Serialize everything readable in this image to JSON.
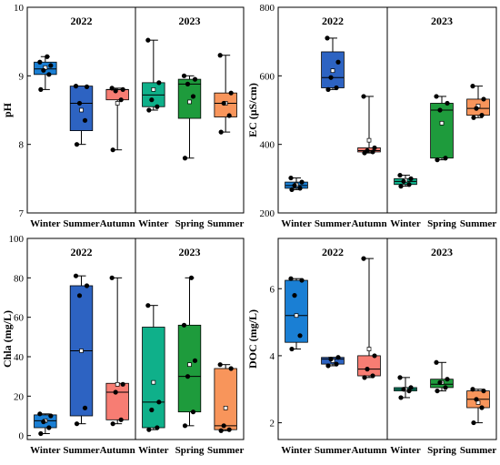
{
  "colors": {
    "Winter22": "#1a7fd4",
    "Summer22": "#2d63c2",
    "Autumn": "#f77d73",
    "Winter23": "#0fb08a",
    "Spring": "#1e9b3c",
    "Summer23": "#f8955b"
  },
  "chart_data": [
    {
      "type": "box",
      "ylabel": "pH",
      "ylim": [
        7,
        10
      ],
      "yticks": [
        "7",
        "8",
        "9",
        "10"
      ],
      "groups": [
        "2022",
        "2023"
      ],
      "categories": [
        "Winter",
        "Summer",
        "Autumn",
        "Winter",
        "Spring",
        "Summer"
      ],
      "boxes": [
        {
          "group": "2022",
          "category": "Winter",
          "color_key": "Winter22",
          "whisker_low": 8.8,
          "q1": 9.02,
          "median": 9.1,
          "q3": 9.2,
          "whisker_high": 9.28,
          "mean": 9.12,
          "points": [
            8.8,
            9.02,
            9.08,
            9.15,
            9.2,
            9.28
          ]
        },
        {
          "group": "2022",
          "category": "Summer",
          "color_key": "Summer22",
          "whisker_low": 8.0,
          "q1": 8.2,
          "median": 8.6,
          "q3": 8.85,
          "whisker_high": 8.85,
          "mean": 8.5,
          "points": [
            8.0,
            8.35,
            8.6,
            8.84,
            8.85
          ]
        },
        {
          "group": "2022",
          "category": "Autumn",
          "color_key": "Autumn",
          "whisker_low": 7.92,
          "q1": 8.65,
          "median": 8.8,
          "q3": 8.8,
          "whisker_high": 8.82,
          "mean": 8.6,
          "points": [
            7.92,
            8.65,
            8.78,
            8.8,
            8.82
          ]
        },
        {
          "group": "2023",
          "category": "Winter",
          "color_key": "Winter23",
          "whisker_low": 8.5,
          "q1": 8.55,
          "median": 8.72,
          "q3": 8.9,
          "whisker_high": 9.52,
          "mean": 8.8,
          "points": [
            8.5,
            8.55,
            8.65,
            8.9,
            9.52
          ]
        },
        {
          "group": "2023",
          "category": "Spring",
          "color_key": "Spring",
          "whisker_low": 7.8,
          "q1": 8.38,
          "median": 8.88,
          "q3": 8.95,
          "whisker_high": 9.0,
          "mean": 8.62,
          "points": [
            7.8,
            8.7,
            8.88,
            8.95,
            9.0
          ]
        },
        {
          "group": "2023",
          "category": "Summer",
          "color_key": "Summer23",
          "whisker_low": 8.18,
          "q1": 8.4,
          "median": 8.6,
          "q3": 8.75,
          "whisker_high": 9.3,
          "mean": 8.6,
          "points": [
            8.18,
            8.42,
            8.6,
            8.75,
            9.3
          ]
        }
      ]
    },
    {
      "type": "box",
      "ylabel": "EC (μS/cm)",
      "ylim": [
        200,
        800
      ],
      "yticks": [
        "200",
        "400",
        "600",
        "800"
      ],
      "groups": [
        "2022",
        "2023"
      ],
      "categories": [
        "Winter",
        "Summer",
        "Autumn",
        "Winter",
        "Spring",
        "Summer"
      ],
      "boxes": [
        {
          "group": "2022",
          "category": "Winter",
          "color_key": "Winter22",
          "whisker_low": 268,
          "q1": 272,
          "median": 280,
          "q3": 290,
          "whisker_high": 302,
          "mean": 282,
          "points": [
            268,
            272,
            280,
            290,
            302
          ]
        },
        {
          "group": "2022",
          "category": "Summer",
          "color_key": "Summer22",
          "whisker_low": 560,
          "q1": 565,
          "median": 595,
          "q3": 670,
          "whisker_high": 710,
          "mean": 615,
          "points": [
            560,
            565,
            595,
            640,
            710
          ]
        },
        {
          "group": "2022",
          "category": "Autumn",
          "color_key": "Autumn",
          "whisker_low": 375,
          "q1": 378,
          "median": 382,
          "q3": 390,
          "whisker_high": 540,
          "mean": 412,
          "points": [
            375,
            378,
            382,
            390,
            540
          ]
        },
        {
          "group": "2023",
          "category": "Winter",
          "color_key": "Winter23",
          "whisker_low": 278,
          "q1": 283,
          "median": 292,
          "q3": 300,
          "whisker_high": 310,
          "mean": 295,
          "points": [
            278,
            283,
            292,
            300,
            310
          ]
        },
        {
          "group": "2023",
          "category": "Spring",
          "color_key": "Spring",
          "whisker_low": 355,
          "q1": 360,
          "median": 500,
          "q3": 520,
          "whisker_high": 540,
          "mean": 462,
          "points": [
            355,
            360,
            500,
            520,
            540
          ]
        },
        {
          "group": "2023",
          "category": "Summer",
          "color_key": "Summer23",
          "whisker_low": 478,
          "q1": 485,
          "median": 505,
          "q3": 532,
          "whisker_high": 570,
          "mean": 512,
          "points": [
            478,
            485,
            505,
            532,
            570
          ]
        }
      ]
    },
    {
      "type": "box",
      "ylabel": "Chla (mg/L)",
      "ylim": [
        -2,
        100
      ],
      "yticks": [
        "0",
        "20",
        "40",
        "60",
        "80",
        "100"
      ],
      "groups": [
        "2022",
        "2023"
      ],
      "categories": [
        "Winter",
        "Summer",
        "Autumn",
        "Winter",
        "Spring",
        "Summer"
      ],
      "boxes": [
        {
          "group": "2022",
          "category": "Winter",
          "color_key": "Winter22",
          "whisker_low": 1,
          "q1": 4,
          "median": 7.5,
          "q3": 10.5,
          "whisker_high": 11,
          "mean": 7.5,
          "points": [
            1,
            4,
            7,
            10,
            11
          ]
        },
        {
          "group": "2022",
          "category": "Summer",
          "color_key": "Summer22",
          "whisker_low": 6,
          "q1": 10,
          "median": 43,
          "q3": 76,
          "whisker_high": 81,
          "mean": 43,
          "points": [
            6,
            14,
            71,
            76,
            81
          ]
        },
        {
          "group": "2022",
          "category": "Autumn",
          "color_key": "Autumn",
          "whisker_low": 6,
          "q1": 8,
          "median": 22,
          "q3": 26.5,
          "whisker_high": 80,
          "mean": 26,
          "points": [
            6,
            8,
            22,
            26,
            80
          ]
        },
        {
          "group": "2023",
          "category": "Winter",
          "color_key": "Winter23",
          "whisker_low": 3,
          "q1": 4,
          "median": 17,
          "q3": 55,
          "whisker_high": 66,
          "mean": 27,
          "points": [
            3,
            4,
            13,
            17,
            66
          ]
        },
        {
          "group": "2023",
          "category": "Spring",
          "color_key": "Spring",
          "whisker_low": 5,
          "q1": 12,
          "median": 30,
          "q3": 56,
          "whisker_high": 80,
          "mean": 36,
          "points": [
            5,
            12,
            30,
            38,
            56,
            80
          ]
        },
        {
          "group": "2023",
          "category": "Summer",
          "color_key": "Summer23",
          "whisker_low": 2.5,
          "q1": 3,
          "median": 5,
          "q3": 34,
          "whisker_high": 36,
          "mean": 14,
          "points": [
            2.5,
            3,
            5,
            34,
            36
          ]
        }
      ]
    },
    {
      "type": "box",
      "ylabel": "DOC (mg/L)",
      "ylim": [
        1.5,
        7.5
      ],
      "yticks": [
        "2",
        "4",
        "6"
      ],
      "groups": [
        "2022",
        "2023"
      ],
      "categories": [
        "Winter",
        "Summer",
        "Autumn",
        "Winter",
        "Spring",
        "Summer"
      ],
      "boxes": [
        {
          "group": "2022",
          "category": "Winter",
          "color_key": "Winter22",
          "whisker_low": 4.2,
          "q1": 4.4,
          "median": 5.2,
          "q3": 6.25,
          "whisker_high": 6.3,
          "mean": 5.2,
          "points": [
            4.2,
            4.6,
            5.8,
            6.25,
            6.3
          ]
        },
        {
          "group": "2022",
          "category": "Summer",
          "color_key": "Summer22",
          "whisker_low": 3.7,
          "q1": 3.75,
          "median": 3.9,
          "q3": 3.95,
          "whisker_high": 3.95,
          "mean": 3.85,
          "points": [
            3.7,
            3.75,
            3.9,
            3.95
          ]
        },
        {
          "group": "2022",
          "category": "Autumn",
          "color_key": "Autumn",
          "whisker_low": 3.35,
          "q1": 3.4,
          "median": 3.6,
          "q3": 4.0,
          "whisker_high": 6.9,
          "mean": 4.2,
          "points": [
            3.35,
            3.4,
            3.6,
            4.0,
            6.9
          ]
        },
        {
          "group": "2023",
          "category": "Winter",
          "color_key": "Winter23",
          "whisker_low": 2.75,
          "q1": 2.95,
          "median": 3.0,
          "q3": 3.05,
          "whisker_high": 3.35,
          "mean": 3.0,
          "points": [
            2.75,
            2.95,
            3.0,
            3.05,
            3.35
          ]
        },
        {
          "group": "2023",
          "category": "Spring",
          "color_key": "Spring",
          "whisker_low": 2.95,
          "q1": 3.05,
          "median": 3.15,
          "q3": 3.3,
          "whisker_high": 3.8,
          "mean": 3.2,
          "points": [
            2.95,
            3.05,
            3.2,
            3.3,
            3.8
          ]
        },
        {
          "group": "2023",
          "category": "Summer",
          "color_key": "Summer23",
          "whisker_low": 2.0,
          "q1": 2.45,
          "median": 2.7,
          "q3": 2.95,
          "whisker_high": 3.0,
          "mean": 2.6,
          "points": [
            2.0,
            2.45,
            2.7,
            2.95,
            3.0
          ]
        }
      ]
    }
  ]
}
